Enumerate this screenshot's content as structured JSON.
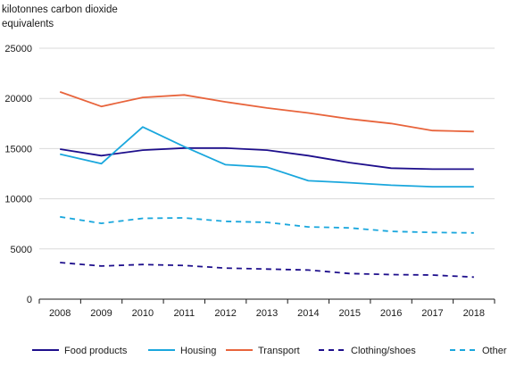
{
  "chart_data": {
    "type": "line",
    "title": "",
    "ylabel": "kilotonnes carbon dioxide\nequivalents",
    "xlabel": "",
    "categories": [
      "2008",
      "2009",
      "2010",
      "2011",
      "2012",
      "2013",
      "2014",
      "2015",
      "2016",
      "2017",
      "2018"
    ],
    "ylim": [
      0,
      25000
    ],
    "yticks": [
      0,
      5000,
      10000,
      15000,
      20000,
      25000
    ],
    "ytick_labels": [
      "0",
      "5000",
      "10000",
      "15000",
      "20000",
      "25000"
    ],
    "grid": "horizontal",
    "legend_position": "bottom",
    "series": [
      {
        "name": "Food products",
        "color": "#1e0f8c",
        "style": "solid",
        "values": [
          14950,
          14300,
          14850,
          15050,
          15050,
          14850,
          14300,
          13600,
          13050,
          12950,
          12950
        ]
      },
      {
        "name": "Housing",
        "color": "#1aa7dd",
        "style": "solid",
        "values": [
          14450,
          13500,
          17150,
          15200,
          13400,
          13150,
          11800,
          11600,
          11350,
          11200,
          11200
        ]
      },
      {
        "name": "Transport",
        "color": "#e8643c",
        "style": "solid",
        "values": [
          20650,
          19200,
          20100,
          20350,
          19650,
          19050,
          18550,
          17950,
          17500,
          16800,
          16700
        ]
      },
      {
        "name": "Clothing/shoes",
        "color": "#1e0f8c",
        "style": "dashed",
        "values": [
          3650,
          3300,
          3450,
          3350,
          3100,
          3000,
          2900,
          2550,
          2450,
          2400,
          2200
        ]
      },
      {
        "name": "Other",
        "color": "#1aa7dd",
        "style": "dashed",
        "values": [
          8200,
          7550,
          8050,
          8100,
          7750,
          7650,
          7200,
          7100,
          6750,
          6650,
          6600
        ]
      }
    ]
  }
}
